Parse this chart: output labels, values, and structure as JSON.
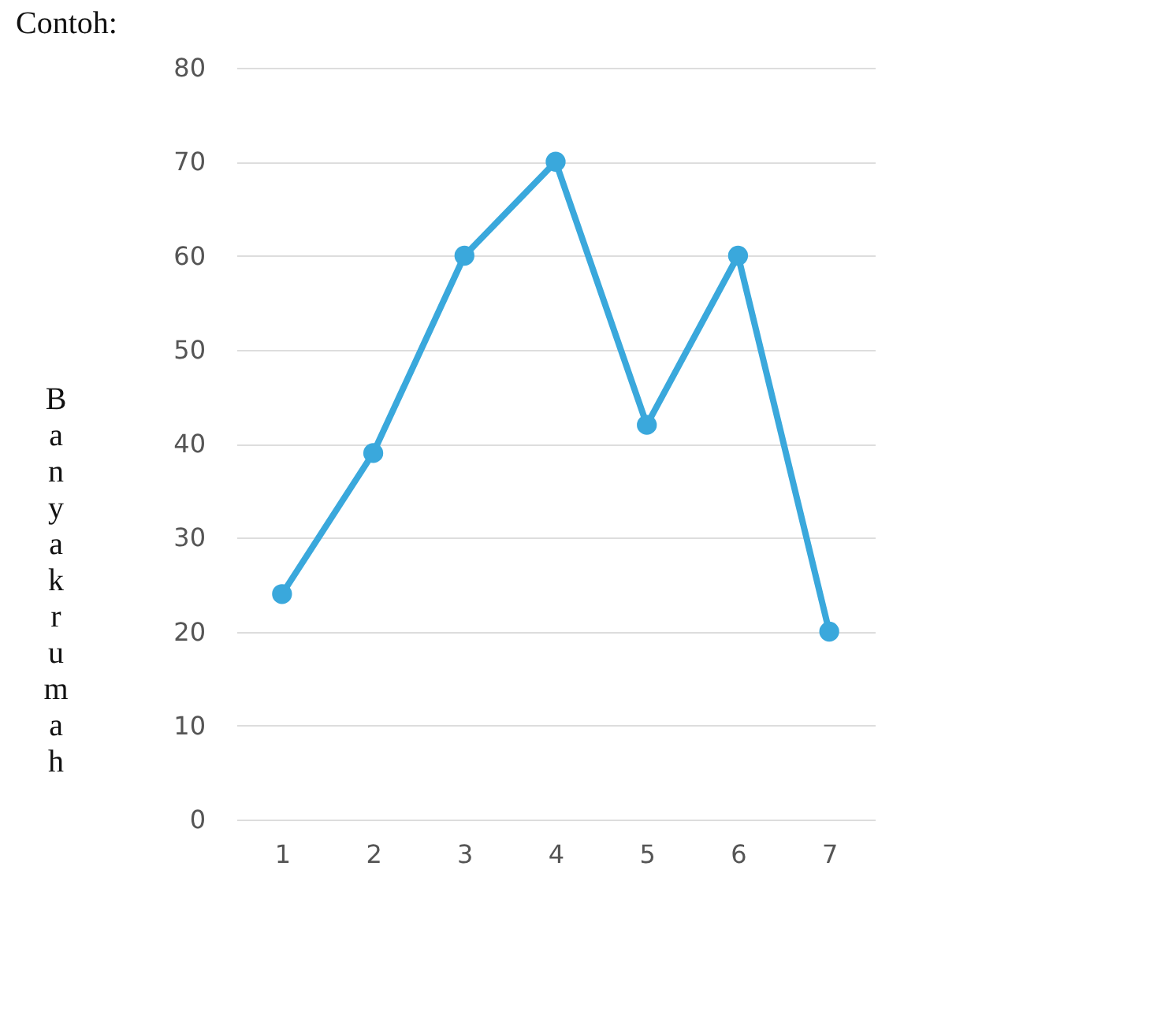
{
  "chart_data": {
    "type": "line",
    "title": "Contoh:",
    "ylabel": "Banyak rumah",
    "categories": [
      "1",
      "2",
      "3",
      "4",
      "5",
      "6",
      "7"
    ],
    "series": [
      {
        "color": "#3aa8dc",
        "values": [
          24,
          39,
          60,
          70,
          42,
          60,
          20
        ]
      }
    ],
    "ylim": [
      0,
      80
    ],
    "yticks": [
      0,
      10,
      20,
      30,
      40,
      50,
      60,
      70,
      80
    ],
    "grid": "y",
    "marker": "circle",
    "line_style": "solid"
  }
}
